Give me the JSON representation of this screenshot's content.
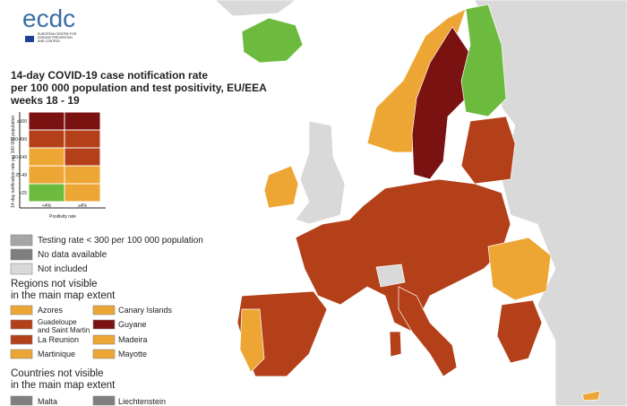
{
  "header": {
    "logo": "ecdc",
    "logo_subtitle": [
      "EUROPEAN CENTRE FOR",
      "DISEASE PREVENTION",
      "AND CONTROL"
    ],
    "title": [
      "14-day COVID-19 case notification rate",
      "per 100 000 population and test positivity, EU/EEA",
      "weeks 18 - 19"
    ]
  },
  "matrix": {
    "y_label": "14-day notification rate per 100 000 population",
    "rows": [
      "≥500",
      "150-499",
      "50-149",
      "25-49",
      "<25"
    ],
    "columns": [
      "<4%",
      "≥4%"
    ],
    "x_label": "Positivity rate"
  },
  "legend": [
    "Testing rate < 300 per 100 000 population",
    "No data available",
    "Not included"
  ],
  "regions": {
    "title": [
      "Regions not visible",
      "in the main map extent"
    ],
    "items": [
      "Azores",
      "Guadeloupe and Saint Martin",
      "La Reunion",
      "Martinique",
      "Canary Islands",
      "Guyane",
      "Madeira",
      "Mayotte"
    ]
  },
  "countries": {
    "title": [
      "Countries not visible",
      "in the main map extent"
    ],
    "items": [
      "Malta",
      "Liechtenstein"
    ]
  }
}
